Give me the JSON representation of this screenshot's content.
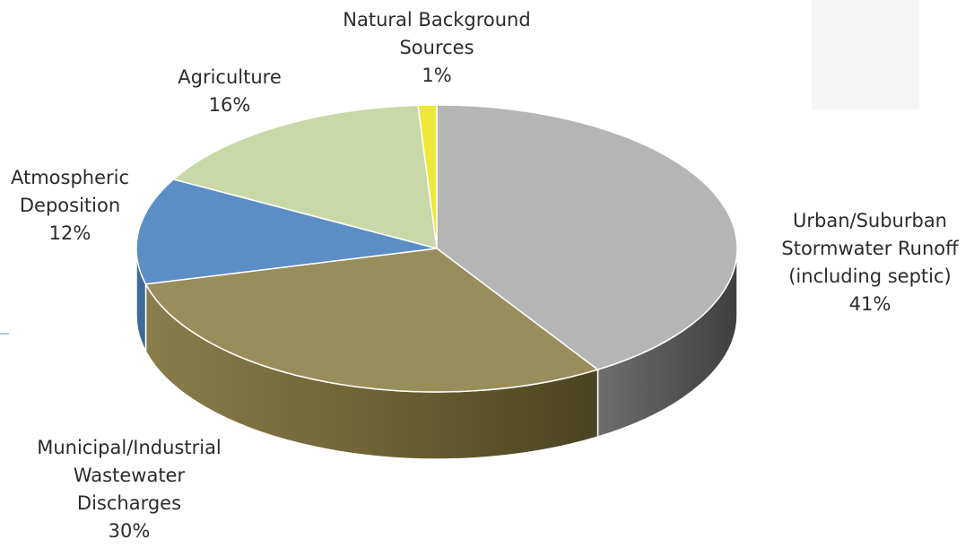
{
  "chart_data": {
    "type": "pie",
    "style": "3d",
    "title": "",
    "slices": [
      {
        "name": "Urban/Suburban Stormwater Runoff (including septic)",
        "label_lines": [
          "Urban/Suburban",
          "Stormwater Runoff",
          "(including septic)"
        ],
        "value": 41,
        "percent_label": "41%",
        "color": "#b5b5b5",
        "side_color": "#5c5c5c"
      },
      {
        "name": "Municipal/Industrial Wastewater Discharges",
        "label_lines": [
          "Municipal/Industrial",
          "Wastewater",
          "Discharges"
        ],
        "value": 30,
        "percent_label": "30%",
        "color": "#9a8d5c",
        "side_color": "#6a6036"
      },
      {
        "name": "Atmospheric Deposition",
        "label_lines": [
          "Atmospheric",
          "Deposition"
        ],
        "value": 12,
        "percent_label": "12%",
        "color": "#5b8ec4",
        "side_color": "#3d6a98"
      },
      {
        "name": "Agriculture",
        "label_lines": [
          "Agriculture"
        ],
        "value": 16,
        "percent_label": "16%",
        "color": "#c9d8a9",
        "side_color": "#9aab7c"
      },
      {
        "name": "Natural Background Sources",
        "label_lines": [
          "Natural Background",
          "Sources"
        ],
        "value": 1,
        "percent_label": "1%",
        "color": "#eee838",
        "side_color": "#b8b220"
      }
    ]
  }
}
